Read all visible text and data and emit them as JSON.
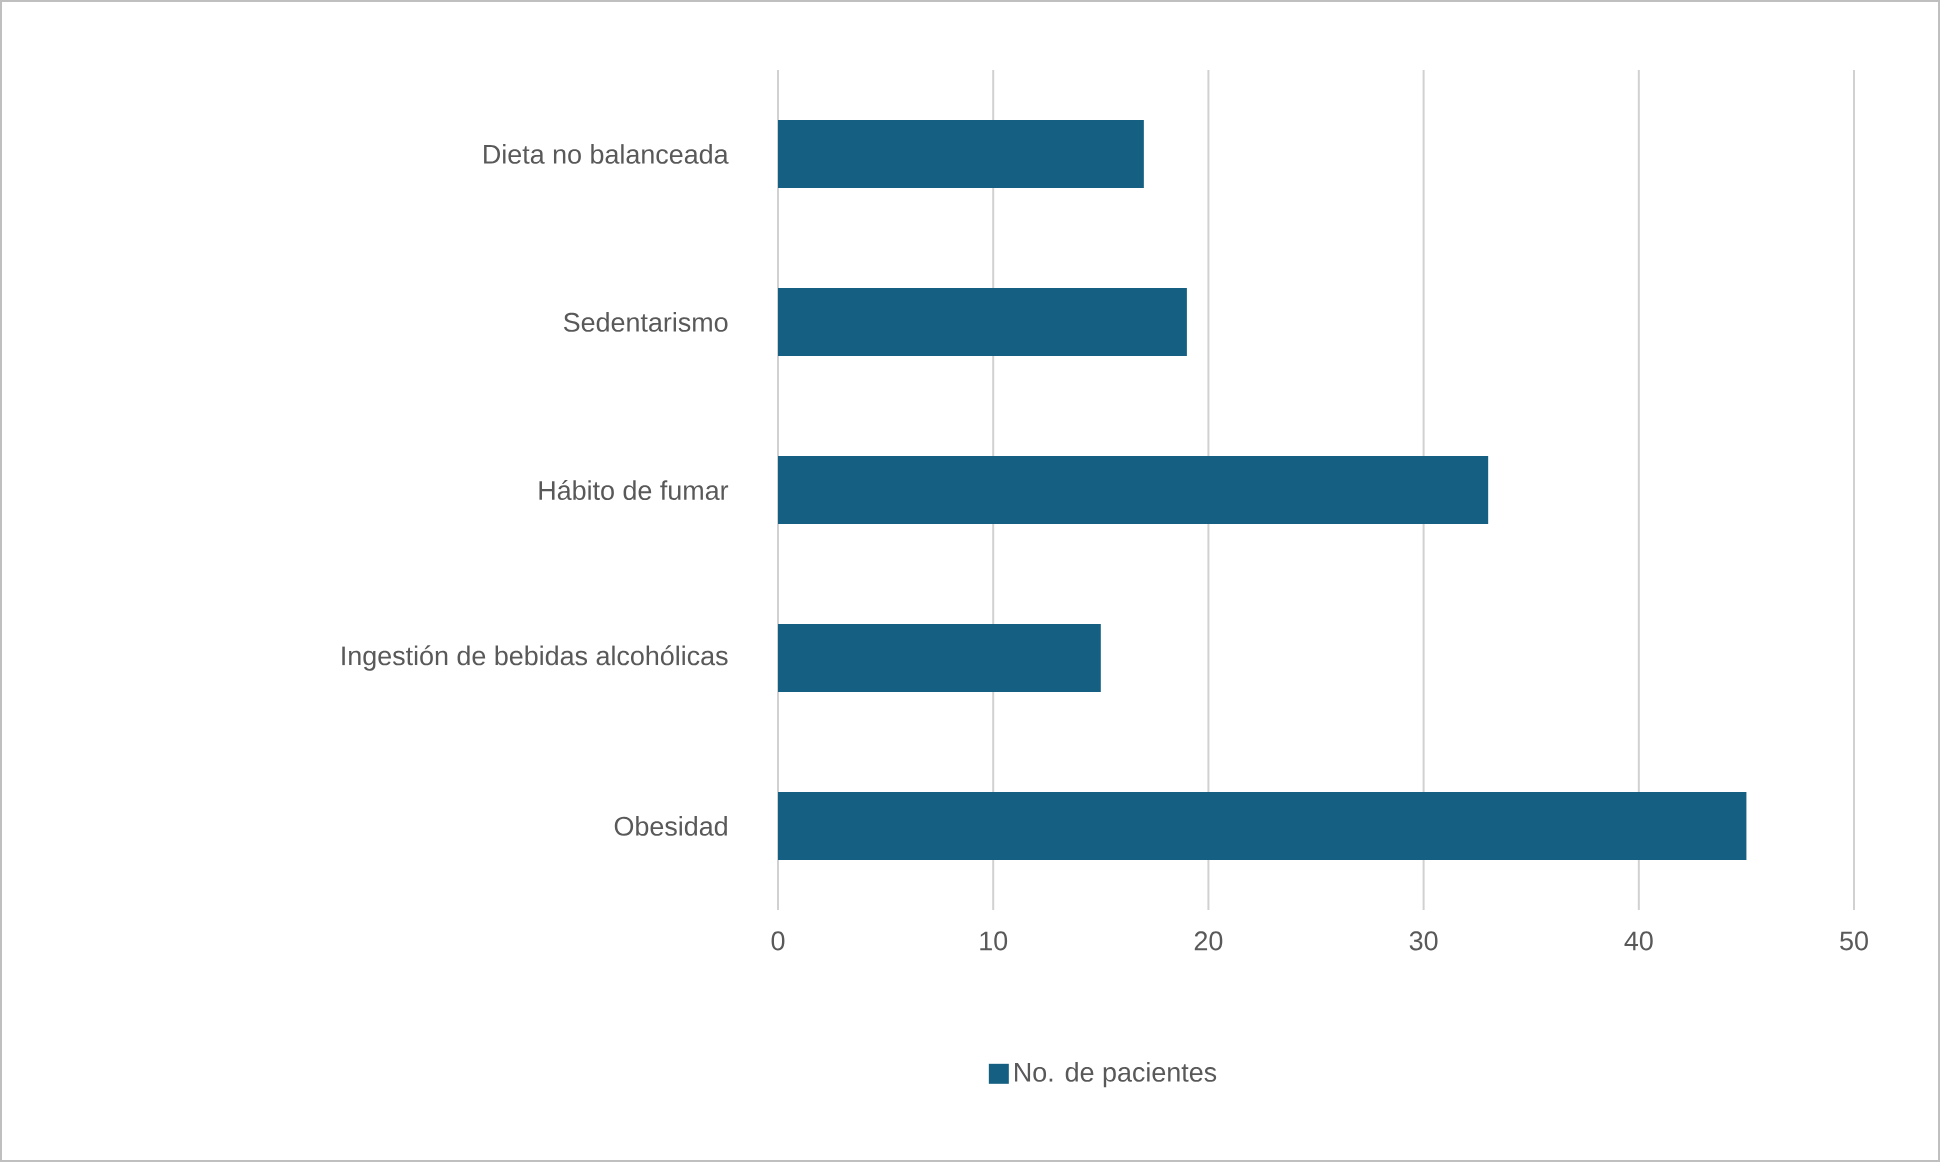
{
  "chart_data": {
    "type": "bar",
    "orientation": "horizontal",
    "categories": [
      "Dieta no balanceada",
      "Sedentarismo",
      "Hábito de fumar",
      "Ingestión de bebidas alcohólicas",
      "Obesidad"
    ],
    "series": [
      {
        "name": "No. de pacientes",
        "color": "#156082",
        "values": [
          17,
          19,
          33,
          15,
          45
        ]
      }
    ],
    "xlim": [
      0,
      50
    ],
    "xticks": [
      0,
      10,
      20,
      30,
      40,
      50
    ],
    "grid": "x",
    "legend": "bottom"
  }
}
